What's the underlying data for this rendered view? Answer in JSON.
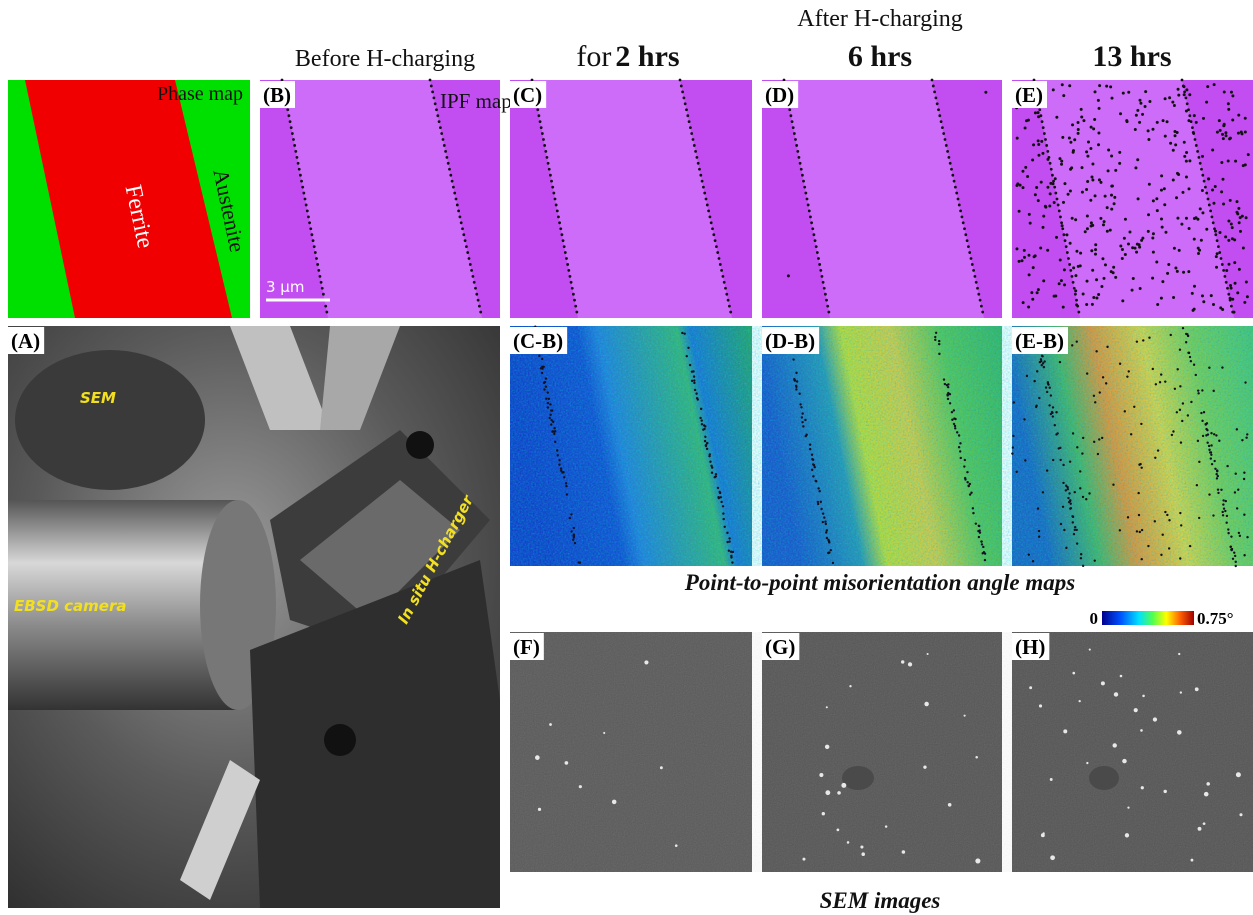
{
  "headers": {
    "before": "Before H-charging",
    "after": "After H-charging",
    "for": "for",
    "t2": "2 hrs",
    "t6": "6 hrs",
    "t13": "13 hrs"
  },
  "panels": {
    "A": "(A)",
    "B": "(B)",
    "C": "(C)",
    "D": "(D)",
    "E": "(E)",
    "CB": "(C-B)",
    "DB": "(D-B)",
    "EB": "(E-B)",
    "F": "(F)",
    "G": "(G)",
    "H": "(H)"
  },
  "phase_map": {
    "title": "Phase map",
    "ferrite": "Ferrite",
    "austenite": "Austenite"
  },
  "ipf_map": "IPF map",
  "scale_bar": "3 μm",
  "photo_labels": {
    "sem": "SEM",
    "ebsd": "EBSD camera",
    "charger": "In situ H-charger"
  },
  "captions": {
    "misorientation": "Point-to-point misorientation angle maps",
    "sem": "SEM images"
  },
  "colorbar": {
    "min": "0",
    "max": "0.75°"
  }
}
